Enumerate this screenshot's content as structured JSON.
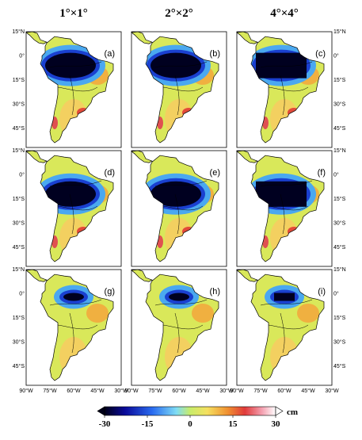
{
  "columns": [
    "1°×1°",
    "2°×2°",
    "4°×4°"
  ],
  "panels": [
    "(a)",
    "(b)",
    "(c)",
    "(d)",
    "(e)",
    "(f)",
    "(g)",
    "(h)",
    "(i)"
  ],
  "latitude_labels": [
    "15°N",
    "0°",
    "15°S",
    "30°S",
    "45°S"
  ],
  "longitude_labels": [
    "90°W",
    "75°W",
    "60°W",
    "45°W",
    "30°W"
  ],
  "colorbar": {
    "ticks": [
      -30,
      -15,
      0,
      15,
      30
    ],
    "unit": "cm"
  }
}
